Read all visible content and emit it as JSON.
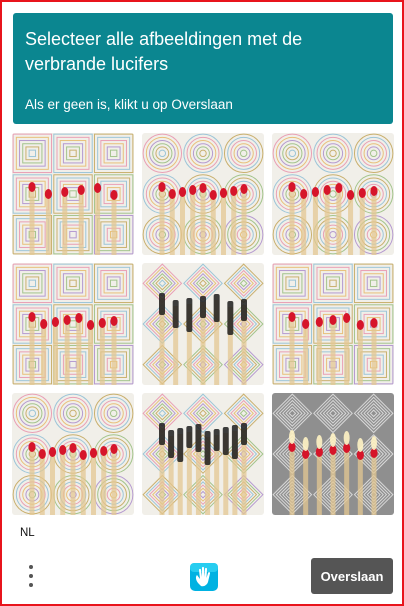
{
  "header": {
    "title": "Selecteer alle afbeeldingen met de verbrande lucifers",
    "subtitle": "Als er geen is, klikt u op Overslaan"
  },
  "colors": {
    "accent": "#0b8690",
    "button": "#555555",
    "border": "#e8141c"
  },
  "tiles": [
    {
      "name": "tile-1",
      "background": "squares",
      "match_head": "red",
      "count": 6
    },
    {
      "name": "tile-2",
      "background": "circles",
      "match_head": "red",
      "count": 9
    },
    {
      "name": "tile-3",
      "background": "circles",
      "match_head": "red",
      "count": 8
    },
    {
      "name": "tile-4",
      "background": "squares",
      "match_head": "red",
      "count": 8
    },
    {
      "name": "tile-5",
      "background": "diamonds",
      "match_head": "burnt",
      "count": 7
    },
    {
      "name": "tile-6",
      "background": "squares",
      "match_head": "red",
      "count": 7
    },
    {
      "name": "tile-7",
      "background": "circles",
      "match_head": "red",
      "count": 9
    },
    {
      "name": "tile-8",
      "background": "diamonds",
      "match_head": "burnt",
      "count": 10
    },
    {
      "name": "tile-9",
      "background": "diamonds-dark",
      "match_head": "flame",
      "count": 7
    }
  ],
  "footer": {
    "language": "NL",
    "menu_icon": "vertical-dots-icon",
    "logo_icon": "hand-logo-icon",
    "skip_label": "Overslaan"
  }
}
